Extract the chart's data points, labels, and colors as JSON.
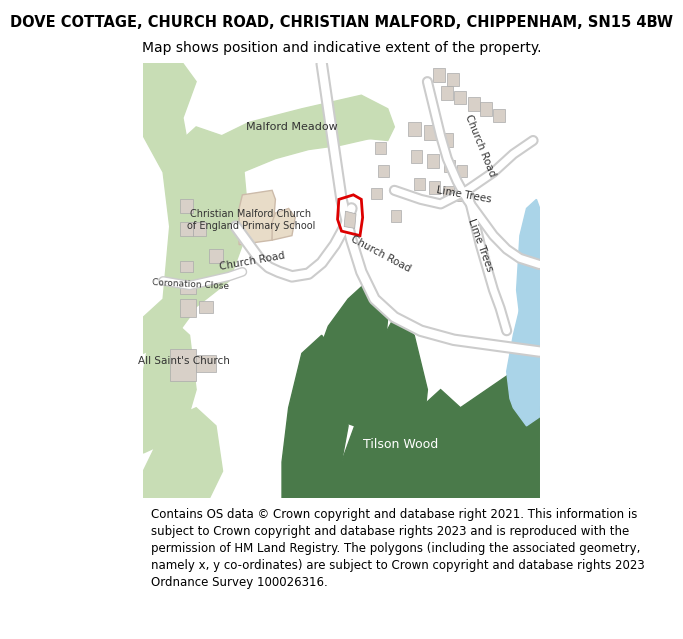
{
  "title_line1": "DOVE COTTAGE, CHURCH ROAD, CHRISTIAN MALFORD, CHIPPENHAM, SN15 4BW",
  "title_line2": "Map shows position and indicative extent of the property.",
  "footer_text": "Contains OS data © Crown copyright and database right 2021. This information is subject to Crown copyright and database rights 2023 and is reproduced with the permission of HM Land Registry. The polygons (including the associated geometry, namely x, y co-ordinates) are subject to Crown copyright and database rights 2023 Ordnance Survey 100026316.",
  "background_color": "#ffffff",
  "map_bg": "#f5f5f0",
  "light_green": "#c8ddb5",
  "dark_green": "#4a7a4a",
  "med_green": "#6aaa6a",
  "beige": "#e8dcc8",
  "road_color": "#ffffff",
  "road_outline": "#cccccc",
  "water_color": "#aad4e8",
  "building_color": "#d8d0c8",
  "building_outline": "#aaaaaa",
  "plot_outline": "#dd0000",
  "label_color": "#333333",
  "title_fontsize": 10.5,
  "subtitle_fontsize": 10,
  "footer_fontsize": 8.5
}
